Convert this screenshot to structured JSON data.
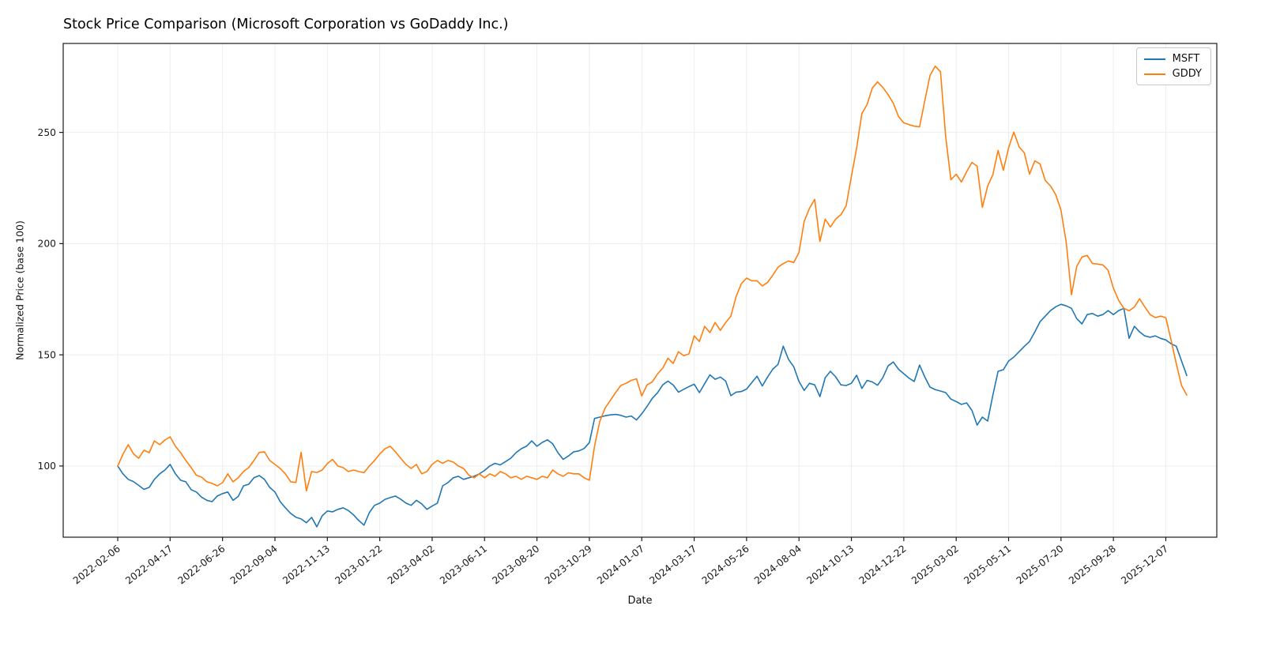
{
  "chart_data": {
    "type": "line",
    "title": "Stock Price Comparison (Microsoft Corporation vs GoDaddy Inc.)",
    "xlabel": "Date",
    "ylabel": "Normalized Price (base 100)",
    "x_start": "2022-02-06",
    "x_step_days": 7,
    "x_tick_every_n_points": 10,
    "x_tick_labels": [
      "2022-02-06",
      "2022-04-17",
      "2022-06-26",
      "2022-09-04",
      "2022-11-13",
      "2023-01-22",
      "2023-04-02",
      "2023-06-11",
      "2023-08-20",
      "2023-10-29",
      "2024-01-07",
      "2024-03-17",
      "2024-05-26",
      "2024-08-04",
      "2024-10-13",
      "2024-12-22",
      "2025-03-02",
      "2025-05-11",
      "2025-07-20",
      "2025-09-28",
      "2025-12-07"
    ],
    "yticks": [
      100,
      150,
      200,
      250
    ],
    "ylim": [
      68,
      290
    ],
    "grid": true,
    "legend_position": "top-right",
    "series": [
      {
        "name": "MSFT",
        "color": "#1f77b4",
        "values": [
          100.0,
          96.5,
          94.0,
          93.0,
          91.3,
          89.5,
          90.4,
          94.0,
          96.5,
          98.2,
          100.7,
          96.5,
          93.6,
          92.9,
          89.4,
          88.3,
          86.0,
          84.6,
          84.0,
          86.5,
          87.6,
          88.3,
          84.6,
          86.3,
          91.1,
          91.8,
          94.7,
          95.7,
          94.0,
          90.4,
          88.3,
          84.0,
          81.2,
          78.7,
          77.0,
          76.2,
          74.5,
          76.9,
          72.7,
          77.6,
          79.8,
          79.4,
          80.5,
          81.2,
          80.0,
          78.0,
          75.5,
          73.4,
          79.0,
          82.3,
          83.3,
          85.0,
          85.8,
          86.5,
          85.1,
          83.3,
          82.3,
          84.6,
          83.0,
          80.5,
          82.0,
          83.3,
          91.1,
          92.5,
          94.7,
          95.4,
          94.0,
          94.7,
          95.4,
          96.5,
          98.0,
          100.0,
          101.2,
          100.5,
          102.0,
          103.5,
          106.0,
          107.8,
          108.9,
          111.3,
          108.9,
          110.6,
          111.8,
          110.0,
          106.0,
          103.0,
          104.5,
          106.4,
          106.8,
          107.9,
          110.5,
          121.4,
          122.0,
          122.6,
          123.0,
          123.2,
          122.8,
          122.0,
          122.5,
          120.7,
          123.5,
          126.8,
          130.4,
          132.9,
          136.5,
          138.2,
          136.4,
          133.2,
          134.5,
          135.7,
          136.8,
          133.0,
          137.0,
          141.0,
          139.0,
          140.0,
          138.2,
          131.6,
          133.2,
          133.5,
          134.6,
          137.5,
          140.4,
          136.0,
          140.0,
          143.5,
          145.7,
          153.9,
          148.0,
          144.6,
          138.0,
          134.0,
          137.2,
          136.5,
          131.2,
          139.7,
          142.6,
          140.1,
          136.5,
          136.2,
          137.2,
          140.8,
          134.9,
          138.5,
          137.8,
          136.3,
          139.7,
          145.0,
          146.8,
          143.5,
          141.5,
          139.5,
          138.0,
          145.4,
          140.1,
          135.5,
          134.4,
          133.7,
          133.0,
          130.1,
          129.0,
          127.7,
          128.4,
          125.0,
          118.4,
          122.0,
          120.2,
          131.9,
          142.6,
          143.3,
          147.2,
          149.0,
          151.4,
          153.8,
          156.0,
          160.3,
          164.9,
          167.4,
          169.9,
          171.6,
          172.7,
          172.0,
          170.9,
          166.3,
          163.9,
          168.1,
          168.6,
          167.4,
          168.1,
          169.9,
          168.1,
          169.9,
          170.9,
          157.4,
          162.8,
          160.3,
          158.5,
          157.9,
          158.5,
          157.4,
          156.7,
          155.0,
          153.9,
          147.2,
          140.7
        ]
      },
      {
        "name": "GDDY",
        "color": "#ff7f0e",
        "values": [
          100.0,
          105.3,
          109.6,
          105.5,
          103.5,
          107.1,
          106.0,
          111.3,
          109.6,
          111.7,
          113.1,
          108.9,
          106.0,
          102.5,
          99.3,
          95.9,
          95.0,
          92.9,
          92.2,
          91.1,
          92.5,
          96.5,
          92.9,
          94.7,
          97.5,
          99.3,
          102.5,
          106.1,
          106.4,
          102.5,
          100.7,
          98.9,
          96.5,
          92.9,
          92.6,
          106.2,
          88.8,
          97.5,
          97.1,
          98.2,
          101.1,
          103.0,
          100.0,
          99.3,
          97.5,
          98.2,
          97.5,
          97.0,
          100.0,
          102.5,
          105.4,
          107.8,
          108.9,
          106.4,
          103.5,
          100.7,
          98.9,
          100.7,
          96.5,
          97.5,
          100.7,
          102.5,
          101.2,
          102.5,
          101.8,
          100.0,
          98.9,
          95.9,
          94.7,
          96.5,
          94.7,
          96.5,
          95.4,
          97.5,
          96.5,
          94.7,
          95.4,
          94.0,
          95.4,
          94.7,
          94.0,
          95.4,
          94.7,
          98.2,
          96.5,
          95.4,
          97.0,
          96.5,
          96.5,
          94.7,
          93.6,
          109.0,
          120.2,
          126.0,
          129.5,
          133.0,
          136.2,
          137.2,
          138.5,
          139.2,
          131.5,
          136.5,
          137.8,
          141.4,
          144.0,
          148.5,
          146.1,
          151.4,
          149.6,
          150.4,
          158.5,
          156.0,
          162.8,
          160.0,
          164.5,
          161.0,
          164.5,
          167.4,
          176.2,
          182.0,
          184.5,
          183.3,
          183.3,
          181.0,
          182.5,
          185.8,
          189.4,
          191.0,
          192.2,
          191.5,
          196.0,
          210.0,
          215.9,
          219.9,
          201.0,
          211.0,
          207.5,
          211.0,
          213.0,
          217.0,
          230.1,
          243.0,
          258.5,
          262.5,
          270.0,
          272.7,
          270.2,
          267.0,
          263.1,
          257.1,
          254.3,
          253.5,
          252.8,
          252.5,
          264.2,
          275.5,
          279.8,
          277.3,
          248.0,
          228.7,
          231.2,
          227.7,
          232.3,
          236.5,
          234.8,
          216.3,
          225.9,
          231.0,
          241.9,
          233.0,
          243.0,
          250.1,
          243.5,
          240.8,
          231.2,
          237.2,
          235.8,
          228.4,
          225.9,
          222.0,
          215.0,
          200.4,
          177.0,
          189.7,
          194.0,
          194.7,
          191.1,
          190.8,
          190.4,
          188.0,
          180.0,
          174.5,
          170.9,
          169.8,
          171.5,
          175.2,
          171.5,
          168.1,
          166.7,
          167.4,
          166.7,
          156.7,
          146.1,
          136.2,
          131.9
        ]
      }
    ]
  }
}
